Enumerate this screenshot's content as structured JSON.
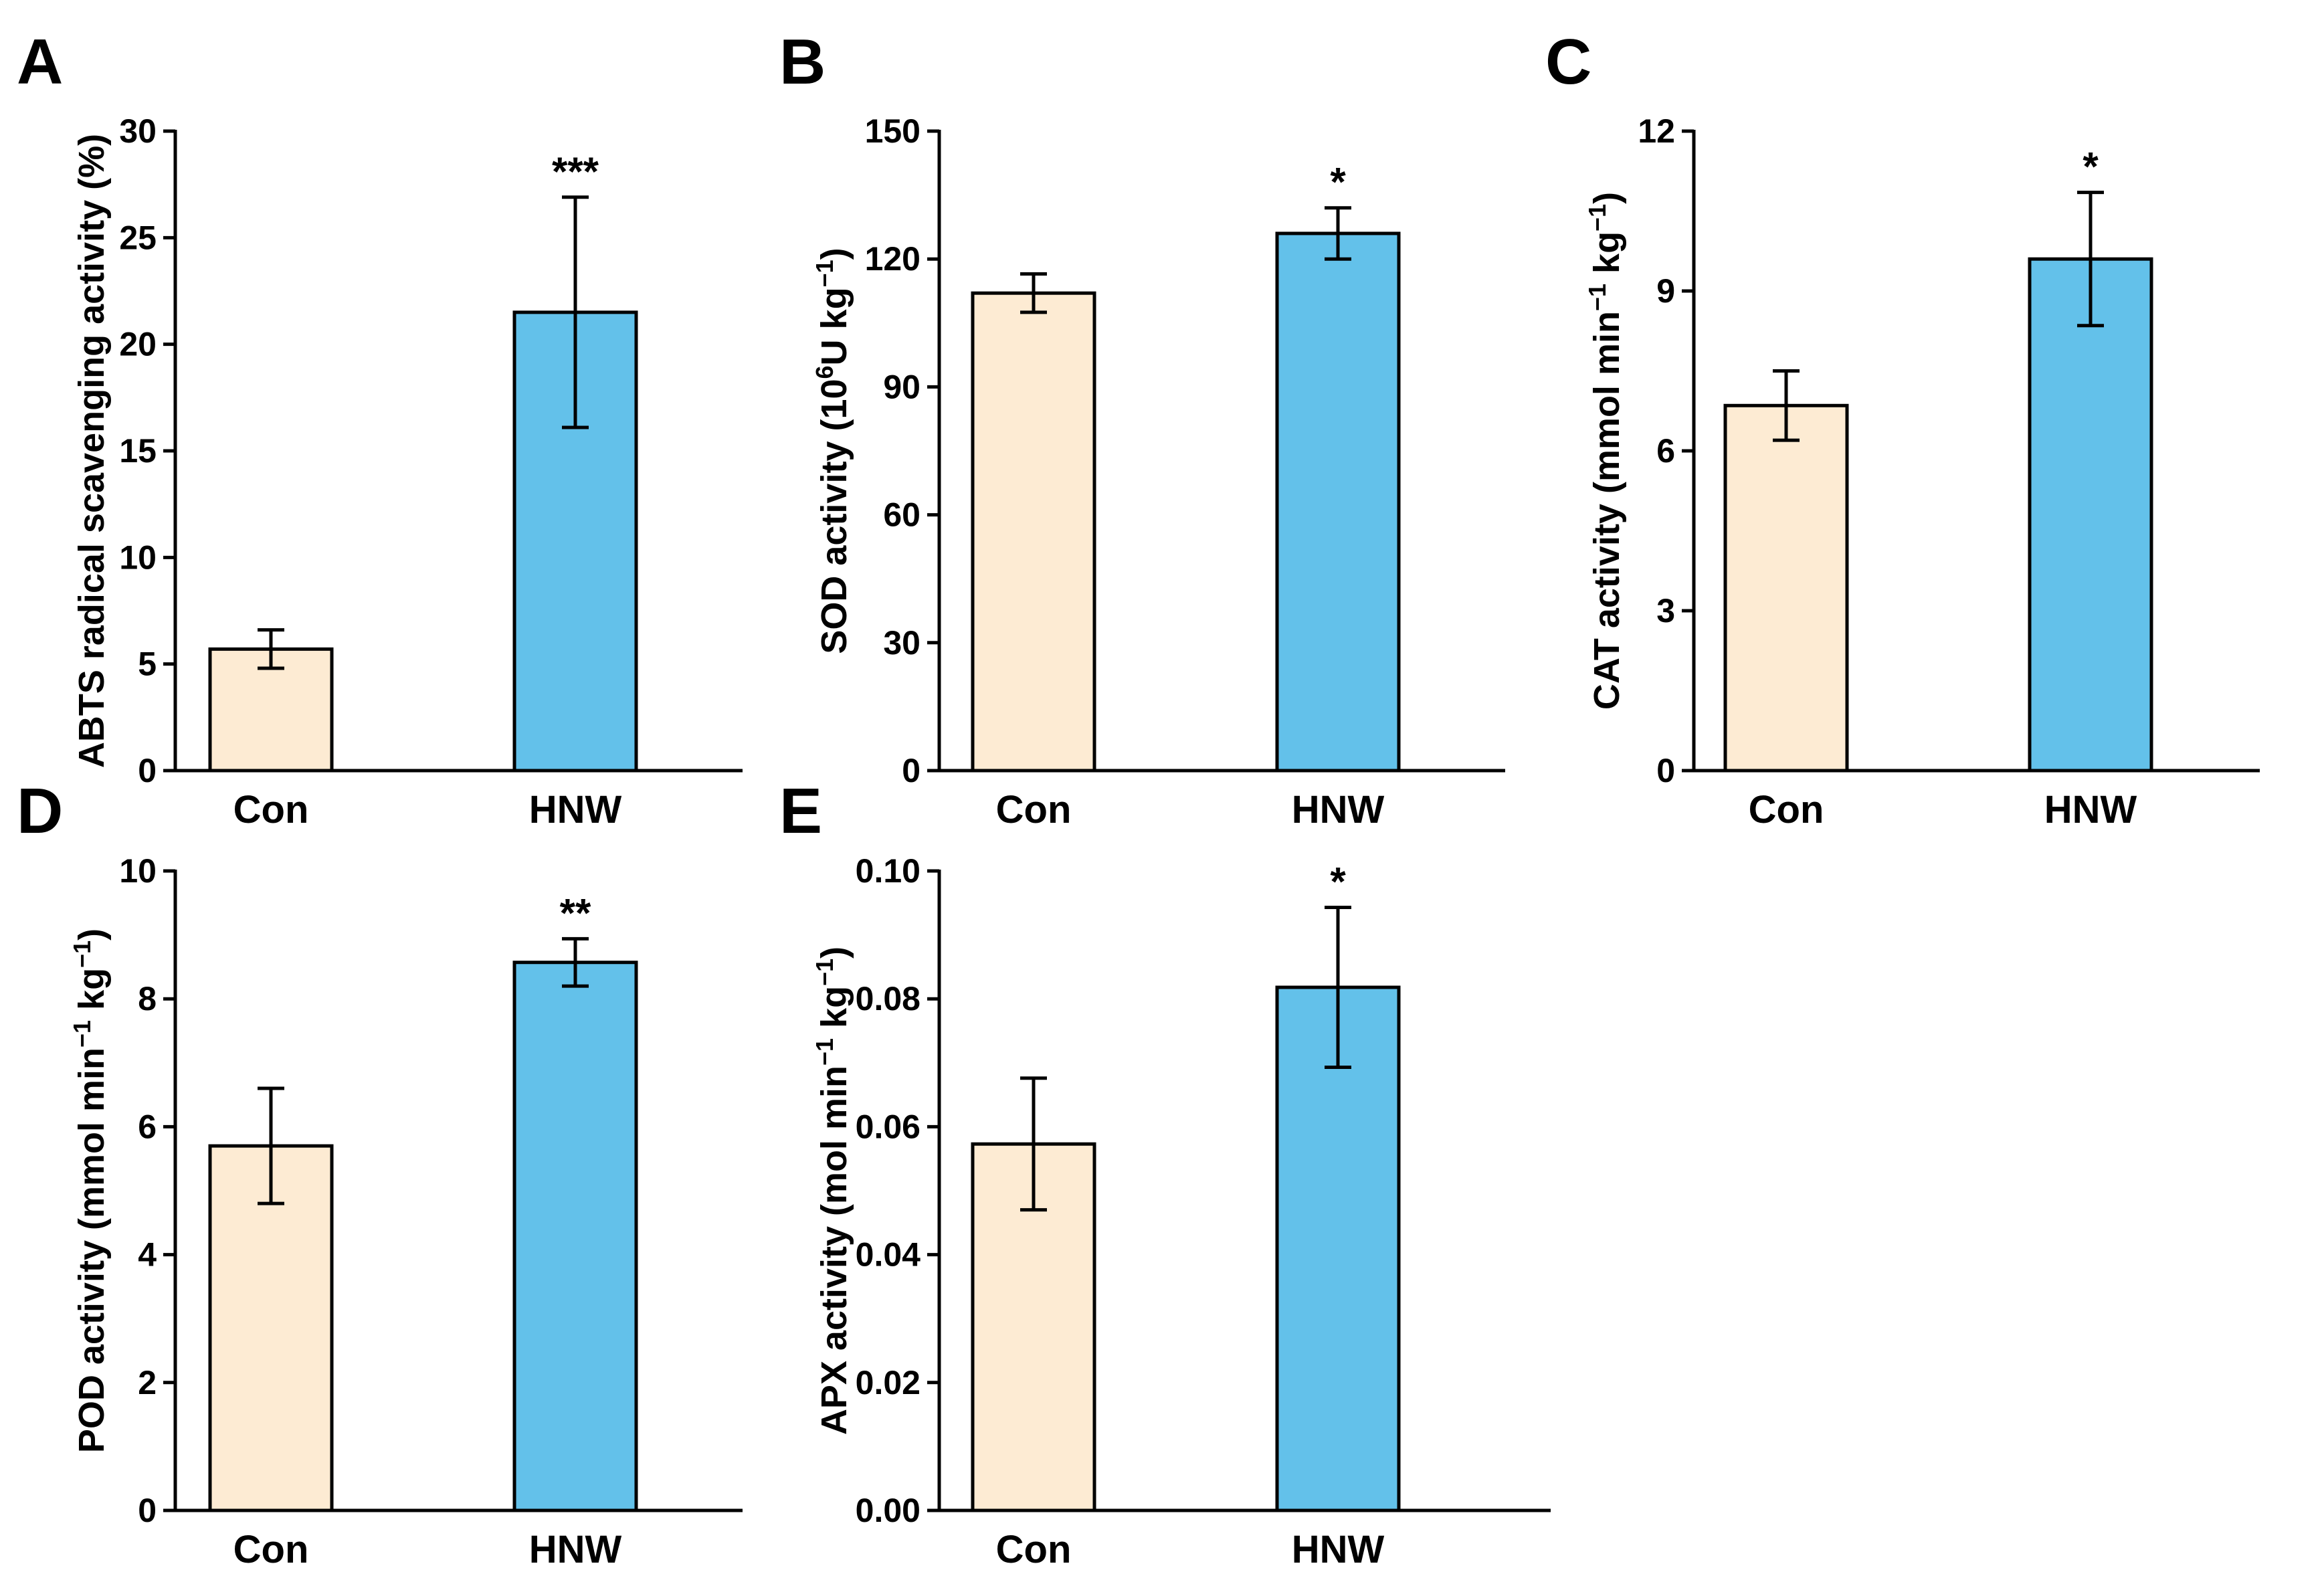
{
  "chart_data": [
    {
      "panel": "A",
      "type": "bar",
      "categories": [
        "Con",
        "HNW"
      ],
      "values": [
        5.7,
        21.5
      ],
      "errors": [
        0.9,
        5.4
      ],
      "significance": [
        "",
        "***"
      ],
      "ylabel": "ABTS radical scavenging activity (%)",
      "ylim": [
        0,
        30
      ],
      "yticks": [
        "0",
        "5",
        "10",
        "15",
        "20",
        "25",
        "30"
      ],
      "colors": [
        "#FDEBD3",
        "#63C1EA"
      ]
    },
    {
      "panel": "B",
      "type": "bar",
      "categories": [
        "Con",
        "HNW"
      ],
      "values": [
        112,
        126
      ],
      "errors": [
        4.5,
        6
      ],
      "significance": [
        "",
        "*"
      ],
      "ylabel_parts": [
        "SOD activity (10",
        "6",
        "U kg",
        "−1",
        ")"
      ],
      "ylim": [
        0,
        150
      ],
      "yticks": [
        "0",
        "30",
        "60",
        "90",
        "120",
        "150"
      ],
      "colors": [
        "#FDEBD3",
        "#63C1EA"
      ]
    },
    {
      "panel": "C",
      "type": "bar",
      "categories": [
        "Con",
        "HNW"
      ],
      "values": [
        6.85,
        9.6
      ],
      "errors": [
        0.65,
        1.25
      ],
      "significance": [
        "",
        "*"
      ],
      "ylabel_parts": [
        "CAT activity (mmol min",
        "−1",
        " kg",
        "−1",
        ")"
      ],
      "ylim": [
        0,
        12
      ],
      "yticks": [
        "0",
        "3",
        "6",
        "9",
        "12"
      ],
      "colors": [
        "#FDEBD3",
        "#63C1EA"
      ]
    },
    {
      "panel": "D",
      "type": "bar",
      "categories": [
        "Con",
        "HNW"
      ],
      "values": [
        5.7,
        8.57
      ],
      "errors": [
        0.9,
        0.37
      ],
      "significance": [
        "",
        "**"
      ],
      "ylabel_parts": [
        "POD activity (mmol min",
        "−1",
        " kg",
        "−1",
        ")"
      ],
      "ylim": [
        0,
        10
      ],
      "yticks": [
        "0",
        "2",
        "4",
        "6",
        "8",
        "10"
      ],
      "colors": [
        "#FDEBD3",
        "#63C1EA"
      ]
    },
    {
      "panel": "E",
      "type": "bar",
      "categories": [
        "Con",
        "HNW"
      ],
      "values": [
        0.0573,
        0.0818
      ],
      "errors": [
        0.0103,
        0.0125
      ],
      "significance": [
        "",
        "*"
      ],
      "ylabel_parts": [
        "APX activity (mol min",
        "−1",
        " kg",
        "−1",
        ")"
      ],
      "ylim": [
        0,
        0.1
      ],
      "yticks": [
        "0.00",
        "0.02",
        "0.04",
        "0.06",
        "0.08",
        "0.10"
      ],
      "colors": [
        "#FDEBD3",
        "#63C1EA"
      ]
    }
  ]
}
